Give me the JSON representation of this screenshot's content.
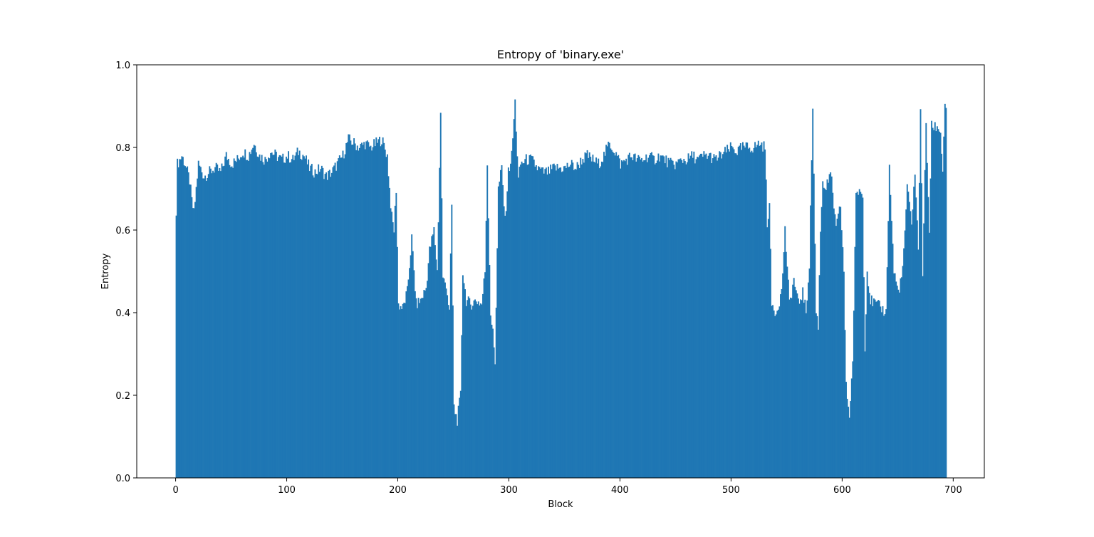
{
  "chart_data": {
    "type": "bar",
    "title": "Entropy of 'binary.exe'",
    "xlabel": "Block",
    "ylabel": "Entropy",
    "xlim": [
      -35,
      728
    ],
    "ylim": [
      0,
      1.0
    ],
    "xticks": [
      0,
      100,
      200,
      300,
      400,
      500,
      600,
      700
    ],
    "xtick_labels": [
      "0",
      "100",
      "200",
      "300",
      "400",
      "500",
      "600",
      "700"
    ],
    "yticks": [
      0.0,
      0.2,
      0.4,
      0.6,
      0.8,
      1.0
    ],
    "ytick_labels": [
      "0.0",
      "0.2",
      "0.4",
      "0.6",
      "0.8",
      "1.0"
    ],
    "bar_color": "#1f77b4",
    "grid": false,
    "legend": "none",
    "x_start": 0,
    "x_end": 693,
    "profile": [
      [
        0,
        0.65
      ],
      [
        1,
        0.76
      ],
      [
        3,
        0.77
      ],
      [
        5,
        0.78
      ],
      [
        8,
        0.76
      ],
      [
        10,
        0.74
      ],
      [
        12,
        0.72
      ],
      [
        14,
        0.67
      ],
      [
        16,
        0.64
      ],
      [
        18,
        0.7
      ],
      [
        20,
        0.76
      ],
      [
        25,
        0.73
      ],
      [
        30,
        0.74
      ],
      [
        35,
        0.75
      ],
      [
        40,
        0.74
      ],
      [
        45,
        0.78
      ],
      [
        50,
        0.76
      ],
      [
        55,
        0.77
      ],
      [
        60,
        0.79
      ],
      [
        65,
        0.78
      ],
      [
        70,
        0.81
      ],
      [
        75,
        0.78
      ],
      [
        80,
        0.77
      ],
      [
        85,
        0.79
      ],
      [
        90,
        0.78
      ],
      [
        95,
        0.77
      ],
      [
        100,
        0.78
      ],
      [
        105,
        0.77
      ],
      [
        110,
        0.79
      ],
      [
        115,
        0.78
      ],
      [
        120,
        0.75
      ],
      [
        125,
        0.74
      ],
      [
        130,
        0.75
      ],
      [
        135,
        0.73
      ],
      [
        140,
        0.74
      ],
      [
        145,
        0.76
      ],
      [
        150,
        0.78
      ],
      [
        155,
        0.82
      ],
      [
        160,
        0.81
      ],
      [
        165,
        0.8
      ],
      [
        170,
        0.81
      ],
      [
        175,
        0.8
      ],
      [
        180,
        0.81
      ],
      [
        185,
        0.82
      ],
      [
        190,
        0.78
      ],
      [
        192,
        0.7
      ],
      [
        194,
        0.63
      ],
      [
        196,
        0.6
      ],
      [
        198,
        0.7
      ],
      [
        200,
        0.42
      ],
      [
        204,
        0.41
      ],
      [
        208,
        0.45
      ],
      [
        212,
        0.58
      ],
      [
        216,
        0.42
      ],
      [
        220,
        0.43
      ],
      [
        225,
        0.46
      ],
      [
        228,
        0.55
      ],
      [
        232,
        0.6
      ],
      [
        235,
        0.5
      ],
      [
        238,
        0.88
      ],
      [
        240,
        0.48
      ],
      [
        243,
        0.47
      ],
      [
        246,
        0.4
      ],
      [
        248,
        0.66
      ],
      [
        250,
        0.17
      ],
      [
        253,
        0.14
      ],
      [
        256,
        0.2
      ],
      [
        258,
        0.5
      ],
      [
        261,
        0.43
      ],
      [
        265,
        0.42
      ],
      [
        270,
        0.43
      ],
      [
        275,
        0.42
      ],
      [
        278,
        0.5
      ],
      [
        280,
        0.76
      ],
      [
        283,
        0.4
      ],
      [
        285,
        0.35
      ],
      [
        287,
        0.28
      ],
      [
        290,
        0.7
      ],
      [
        293,
        0.75
      ],
      [
        296,
        0.62
      ],
      [
        299,
        0.74
      ],
      [
        302,
        0.78
      ],
      [
        305,
        0.91
      ],
      [
        308,
        0.72
      ],
      [
        310,
        0.76
      ],
      [
        315,
        0.77
      ],
      [
        320,
        0.77
      ],
      [
        325,
        0.75
      ],
      [
        330,
        0.74
      ],
      [
        335,
        0.74
      ],
      [
        340,
        0.75
      ],
      [
        345,
        0.75
      ],
      [
        350,
        0.75
      ],
      [
        355,
        0.76
      ],
      [
        360,
        0.75
      ],
      [
        365,
        0.77
      ],
      [
        370,
        0.78
      ],
      [
        375,
        0.77
      ],
      [
        380,
        0.76
      ],
      [
        385,
        0.78
      ],
      [
        390,
        0.81
      ],
      [
        395,
        0.79
      ],
      [
        400,
        0.76
      ],
      [
        405,
        0.77
      ],
      [
        410,
        0.78
      ],
      [
        415,
        0.77
      ],
      [
        420,
        0.77
      ],
      [
        425,
        0.78
      ],
      [
        430,
        0.77
      ],
      [
        435,
        0.78
      ],
      [
        440,
        0.77
      ],
      [
        445,
        0.76
      ],
      [
        450,
        0.76
      ],
      [
        455,
        0.77
      ],
      [
        460,
        0.77
      ],
      [
        465,
        0.78
      ],
      [
        470,
        0.77
      ],
      [
        475,
        0.78
      ],
      [
        480,
        0.78
      ],
      [
        485,
        0.77
      ],
      [
        490,
        0.78
      ],
      [
        495,
        0.79
      ],
      [
        500,
        0.8
      ],
      [
        505,
        0.79
      ],
      [
        510,
        0.8
      ],
      [
        515,
        0.8
      ],
      [
        520,
        0.8
      ],
      [
        525,
        0.81
      ],
      [
        530,
        0.8
      ],
      [
        532,
        0.62
      ],
      [
        534,
        0.66
      ],
      [
        536,
        0.42
      ],
      [
        540,
        0.4
      ],
      [
        545,
        0.45
      ],
      [
        548,
        0.6
      ],
      [
        552,
        0.42
      ],
      [
        556,
        0.48
      ],
      [
        560,
        0.42
      ],
      [
        564,
        0.45
      ],
      [
        567,
        0.4
      ],
      [
        570,
        0.52
      ],
      [
        573,
        0.9
      ],
      [
        576,
        0.4
      ],
      [
        578,
        0.37
      ],
      [
        580,
        0.6
      ],
      [
        582,
        0.72
      ],
      [
        585,
        0.7
      ],
      [
        588,
        0.73
      ],
      [
        590,
        0.72
      ],
      [
        594,
        0.6
      ],
      [
        598,
        0.66
      ],
      [
        601,
        0.5
      ],
      [
        603,
        0.22
      ],
      [
        606,
        0.15
      ],
      [
        609,
        0.28
      ],
      [
        612,
        0.68
      ],
      [
        615,
        0.7
      ],
      [
        618,
        0.68
      ],
      [
        620,
        0.32
      ],
      [
        622,
        0.5
      ],
      [
        625,
        0.43
      ],
      [
        630,
        0.42
      ],
      [
        635,
        0.41
      ],
      [
        639,
        0.4
      ],
      [
        642,
        0.75
      ],
      [
        646,
        0.5
      ],
      [
        650,
        0.45
      ],
      [
        654,
        0.5
      ],
      [
        658,
        0.7
      ],
      [
        662,
        0.62
      ],
      [
        665,
        0.74
      ],
      [
        668,
        0.55
      ],
      [
        670,
        0.9
      ],
      [
        672,
        0.5
      ],
      [
        675,
        0.85
      ],
      [
        678,
        0.6
      ],
      [
        680,
        0.85
      ],
      [
        685,
        0.85
      ],
      [
        688,
        0.84
      ],
      [
        690,
        0.74
      ],
      [
        692,
        0.91
      ],
      [
        693,
        0.9
      ]
    ]
  }
}
